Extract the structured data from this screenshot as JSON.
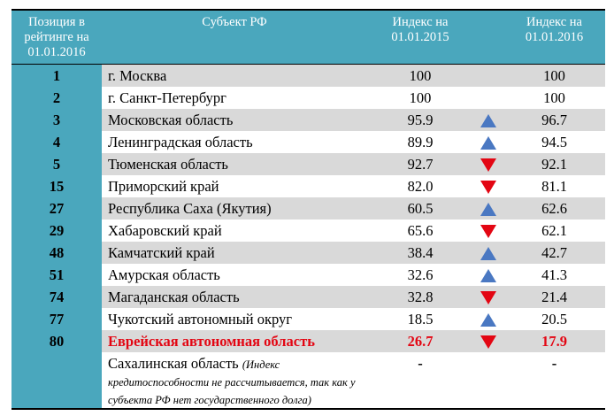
{
  "header": {
    "rank": "Позиция в рейтинге на 01.01.2016",
    "subject": "Субъект РФ",
    "index2015": "Индекс на 01.01.2015",
    "index2016": "Индекс на 01.01.2016"
  },
  "rows": [
    {
      "rank": "1",
      "name": "г. Москва",
      "v2015": "100",
      "trend": "",
      "v2016": "100",
      "style": "shade"
    },
    {
      "rank": "2",
      "name": "г. Санкт-Петербург",
      "v2015": "100",
      "trend": "",
      "v2016": "100",
      "style": "plain"
    },
    {
      "rank": "3",
      "name": "Московская область",
      "v2015": "95.9",
      "trend": "up",
      "v2016": "96.7",
      "style": "shade"
    },
    {
      "rank": "4",
      "name": "Ленинградская область",
      "v2015": "89.9",
      "trend": "up",
      "v2016": "94.5",
      "style": "plain"
    },
    {
      "rank": "5",
      "name": "Тюменская область",
      "v2015": "92.7",
      "trend": "down",
      "v2016": "92.1",
      "style": "shade"
    },
    {
      "rank": "15",
      "name": "Приморский край",
      "v2015": "82.0",
      "trend": "down",
      "v2016": "81.1",
      "style": "plain"
    },
    {
      "rank": "27",
      "name": "Республика Саха (Якутия)",
      "v2015": "60.5",
      "trend": "up",
      "v2016": "62.6",
      "style": "shade"
    },
    {
      "rank": "29",
      "name": "Хабаровский край",
      "v2015": "65.6",
      "trend": "down",
      "v2016": "62.1",
      "style": "plain"
    },
    {
      "rank": "48",
      "name": "Камчатский край",
      "v2015": "38.4",
      "trend": "up",
      "v2016": "42.7",
      "style": "shade"
    },
    {
      "rank": "51",
      "name": "Амурская область",
      "v2015": "32.6",
      "trend": "up",
      "v2016": "41.3",
      "style": "plain"
    },
    {
      "rank": "74",
      "name": "Магаданская область",
      "v2015": "32.8",
      "trend": "down",
      "v2016": "21.4",
      "style": "shade"
    },
    {
      "rank": "77",
      "name": "Чукотский автономный округ",
      "v2015": "18.5",
      "trend": "up",
      "v2016": "20.5",
      "style": "plain"
    },
    {
      "rank": "80",
      "name": "Еврейская автономная область",
      "v2015": "26.7",
      "trend": "down",
      "v2016": "17.9",
      "style": "shade highlight"
    }
  ],
  "last_row": {
    "rank": "",
    "name": "Сахалинская область",
    "note": "(Индекс кредитоспособности не рассчитывается, так как у субъекта РФ нет государственного долга)",
    "v2015": "-",
    "v2016": "-"
  },
  "colors": {
    "header_bg": "#4aa7bd",
    "shade_bg": "#d9d9d9",
    "up_arrow": "#4a78c2",
    "down_arrow": "#e30613",
    "highlight_text": "#e30613"
  }
}
